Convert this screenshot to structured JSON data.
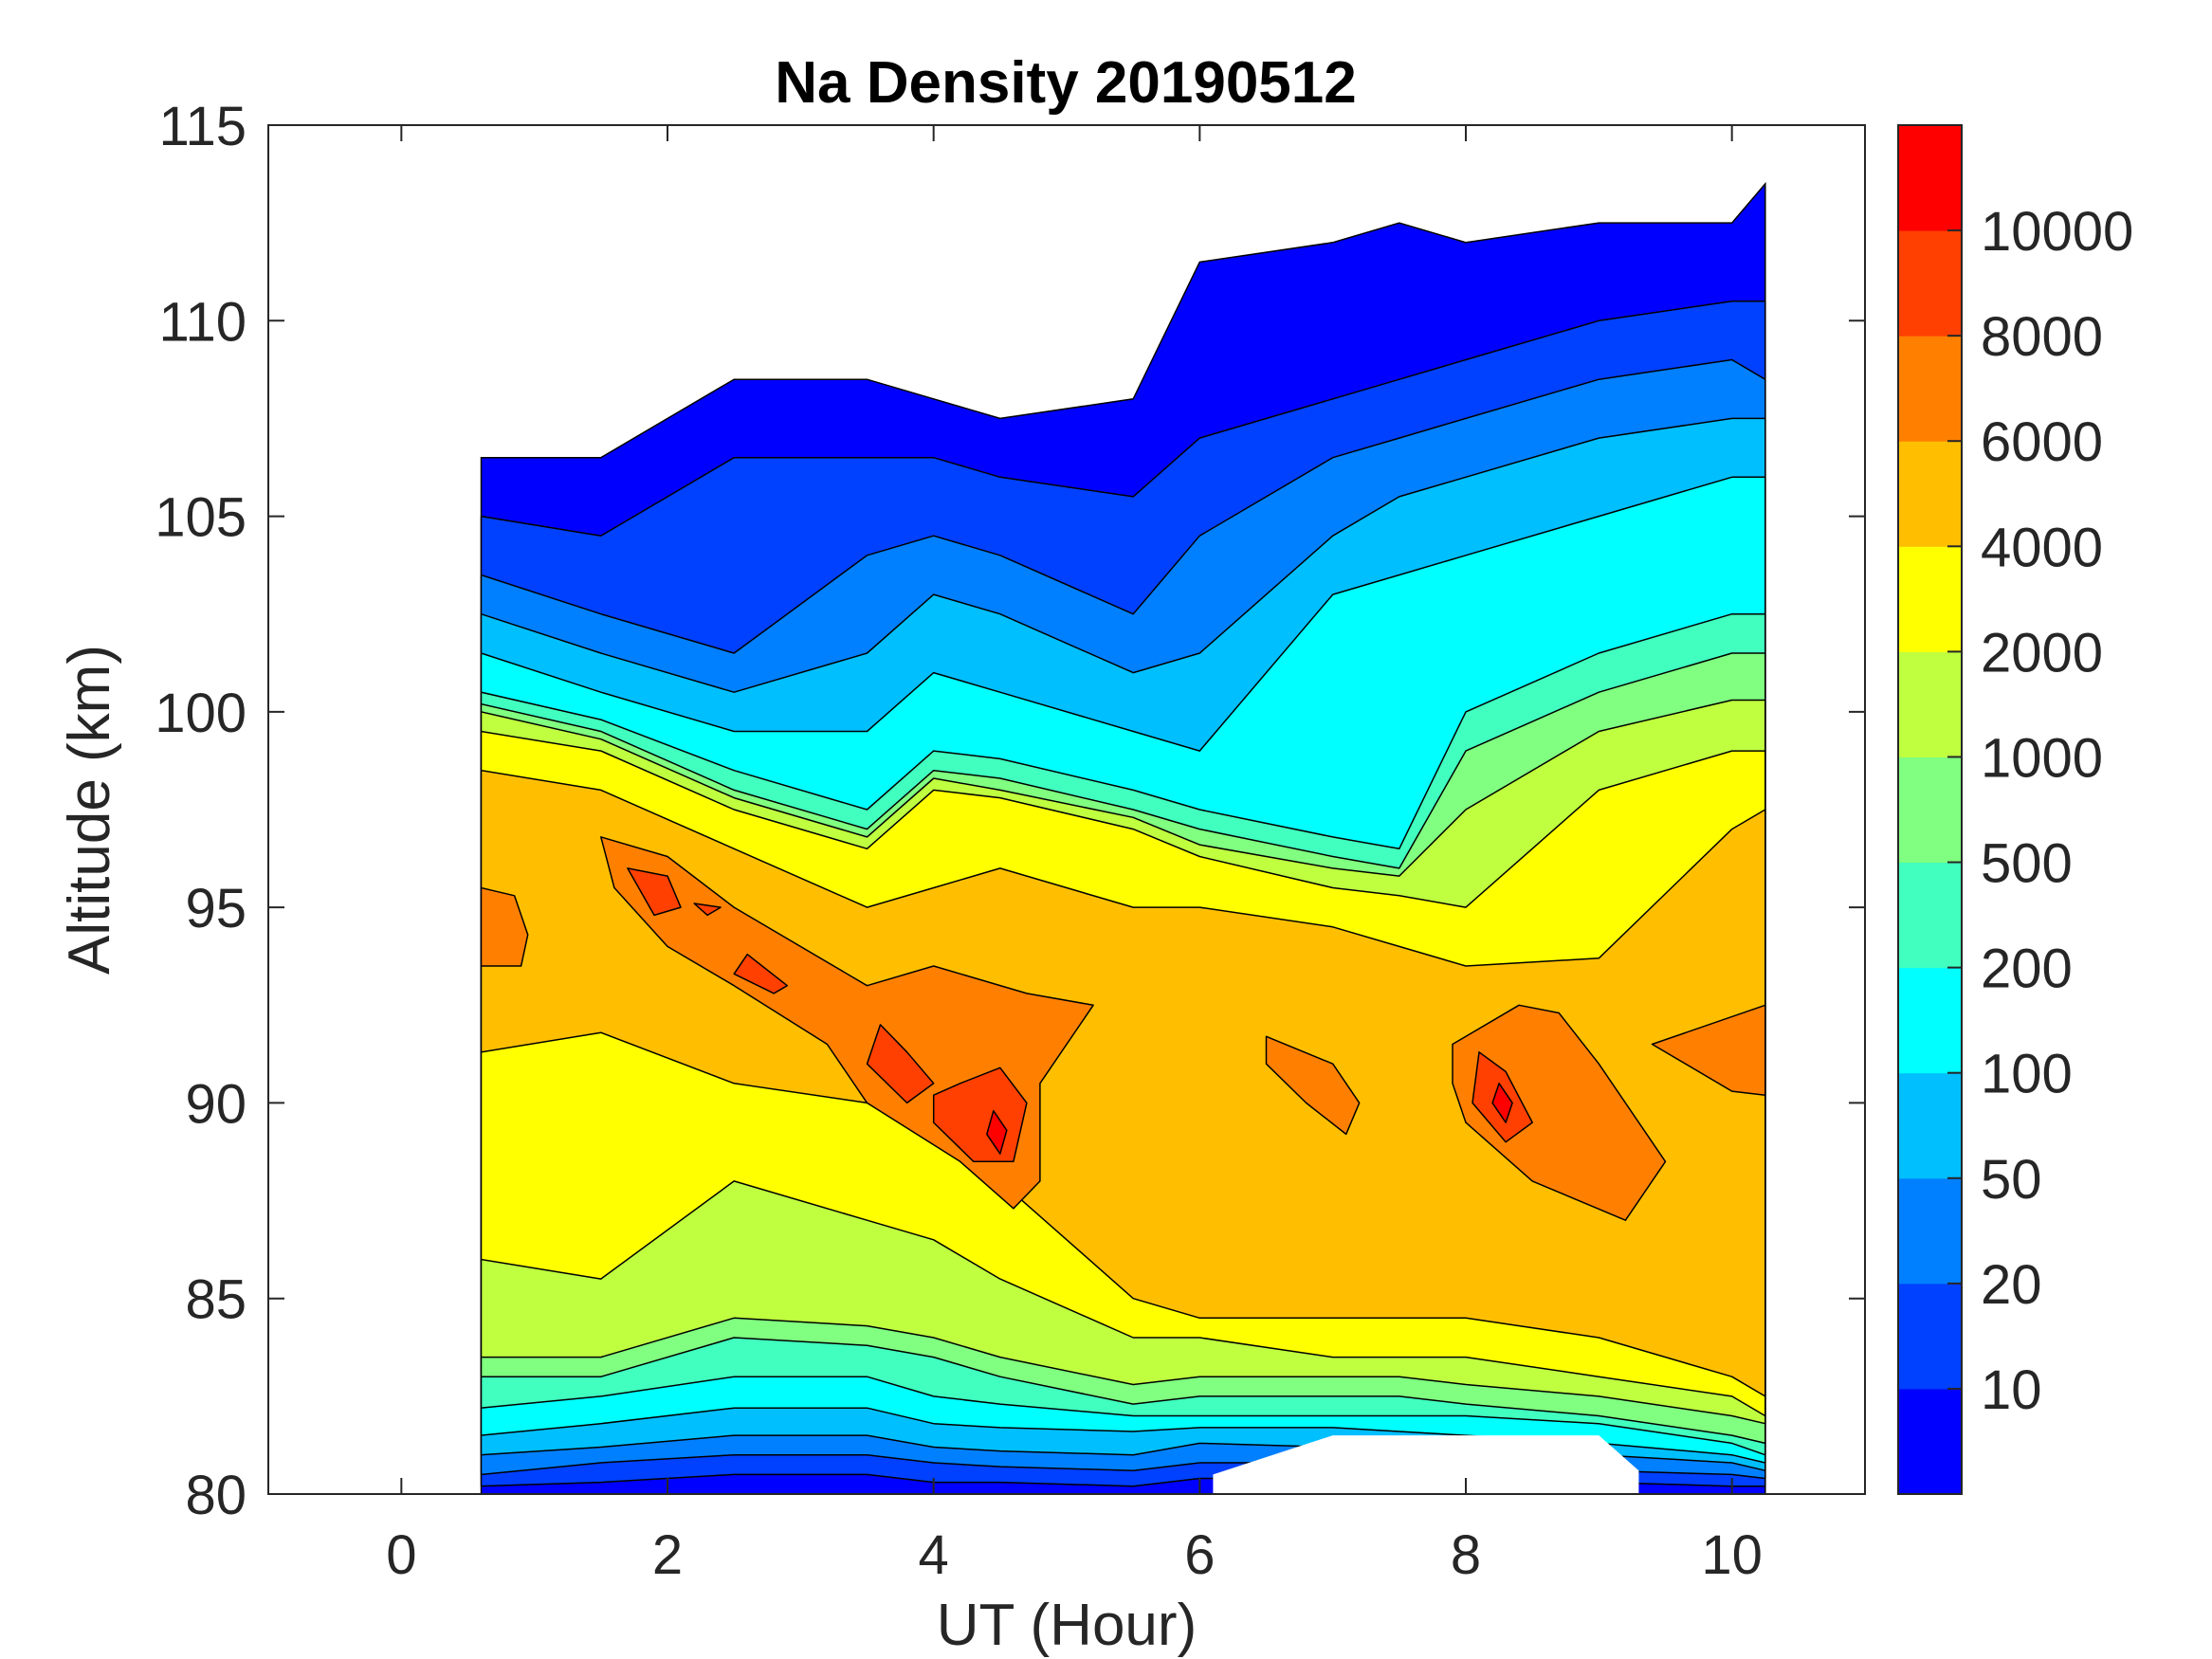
{
  "chart_data": {
    "type": "contour",
    "title": "Na Density 20190512",
    "xlabel": "UT (Hour)",
    "ylabel": "Altitude (km)",
    "xlim": [
      -1,
      11
    ],
    "ylim": [
      80,
      115
    ],
    "xticks": [
      0,
      2,
      4,
      6,
      8,
      10
    ],
    "yticks": [
      80,
      85,
      90,
      95,
      100,
      105,
      110,
      115
    ],
    "levels": [
      10,
      20,
      50,
      100,
      200,
      500,
      1000,
      2000,
      4000,
      6000,
      8000,
      10000
    ],
    "colorbar_ticks": [
      "10",
      "20",
      "50",
      "100",
      "200",
      "500",
      "1000",
      "2000",
      "4000",
      "6000",
      "8000",
      "10000"
    ],
    "band_colors": [
      "#0000ff",
      "#0040ff",
      "#0080ff",
      "#00bfff",
      "#00ffff",
      "#40ffbf",
      "#80ff80",
      "#bfff40",
      "#ffff00",
      "#ffbf00",
      "#ff8000",
      "#ff4000",
      "#ff0000"
    ],
    "ut": [
      0.6,
      1.5,
      2.5,
      3.5,
      4,
      4.5,
      5.5,
      6,
      7,
      7.5,
      8,
      9,
      10,
      10.25
    ],
    "data_top_km": [
      106.5,
      106.5,
      108.5,
      108.5,
      108,
      107.5,
      108,
      111.5,
      112,
      112.5,
      112,
      112.5,
      112.5,
      113.5
    ],
    "layer_top_km": {
      "10": [
        105,
        104.5,
        106.5,
        106.5,
        106.5,
        106,
        105.5,
        107,
        108,
        108.5,
        109,
        110,
        110.5,
        110.5
      ],
      "20": [
        103.5,
        102.5,
        101.5,
        104,
        104.5,
        104,
        102.5,
        104.5,
        106.5,
        107,
        107.5,
        108.5,
        109,
        108.5
      ],
      "50": [
        102.5,
        101.5,
        100.5,
        101.5,
        103,
        102.5,
        101,
        101.5,
        104.5,
        105.5,
        106,
        107,
        107.5,
        107.5
      ],
      "100": [
        101.5,
        100.5,
        99.5,
        99.5,
        101,
        100.5,
        99.5,
        99,
        103,
        103.5,
        104,
        105,
        106,
        106
      ],
      "200": [
        100.5,
        99.8,
        98.5,
        97.5,
        99,
        98.8,
        98,
        97.5,
        96.8,
        96.5,
        100,
        101.5,
        102.5,
        102.5
      ],
      "500": [
        100.2,
        99.5,
        98,
        97,
        98.5,
        98.3,
        97.5,
        97,
        96.3,
        96,
        99,
        100.5,
        101.5,
        101.5
      ],
      "1000": [
        100,
        99.3,
        97.8,
        96.8,
        98.3,
        98,
        97.3,
        96.6,
        96,
        95.8,
        97.5,
        99.5,
        100.3,
        100.3
      ],
      "2000": [
        99.5,
        99,
        97.5,
        96.5,
        98,
        97.8,
        97,
        96.3,
        95.5,
        95.3,
        95,
        98,
        99,
        99
      ],
      "4000": [
        98.5,
        98,
        96.5,
        95,
        95.5,
        96,
        95,
        95,
        94.5,
        94,
        93.5,
        93.7,
        97,
        97.5
      ]
    },
    "layer_bottom_km": {
      "10": [
        80.2,
        80.3,
        80.5,
        80.5,
        80.3,
        80.3,
        80.2,
        80.4,
        80.4,
        80.3,
        80.3,
        80.3,
        80.2,
        80.2
      ],
      "20": [
        80.5,
        80.8,
        81,
        81,
        80.8,
        80.7,
        80.6,
        80.8,
        80.8,
        80.7,
        80.6,
        80.6,
        80.5,
        80.4
      ],
      "50": [
        81,
        81.2,
        81.5,
        81.5,
        81.2,
        81.1,
        81,
        81.3,
        81.2,
        81.1,
        81,
        81,
        80.8,
        80.6
      ],
      "100": [
        81.5,
        81.8,
        82.2,
        82.2,
        81.8,
        81.7,
        81.6,
        81.7,
        81.7,
        81.6,
        81.5,
        81.3,
        81,
        80.8
      ],
      "200": [
        82.2,
        82.5,
        83,
        83,
        82.5,
        82.3,
        82,
        82,
        82,
        82,
        82,
        81.8,
        81.3,
        81
      ],
      "500": [
        83,
        83,
        84,
        83.8,
        83.5,
        83,
        82.3,
        82.5,
        82.5,
        82.5,
        82.3,
        82,
        81.5,
        81.3
      ],
      "1000": [
        83.5,
        83.5,
        84.5,
        84.3,
        84,
        83.5,
        82.8,
        83,
        83,
        83,
        82.8,
        82.5,
        82,
        81.8
      ],
      "2000": [
        86,
        85.5,
        88,
        87,
        86.5,
        85.5,
        84,
        84,
        83.5,
        83.5,
        83.5,
        83,
        82.5,
        82
      ],
      "4000": [
        91.3,
        91.8,
        90.5,
        90,
        89,
        88,
        85,
        84.5,
        84.5,
        84.5,
        84.5,
        84,
        83,
        82.5
      ]
    },
    "peaks": {
      "6000": [
        [
          [
            0.6,
            93.5
          ],
          [
            0.6,
            95.5
          ],
          [
            0.85,
            95.3
          ],
          [
            0.95,
            94.3
          ],
          [
            0.9,
            93.5
          ]
        ],
        [
          [
            1.5,
            96.8
          ],
          [
            2,
            96.3
          ],
          [
            2.5,
            95
          ],
          [
            3.5,
            93
          ],
          [
            4,
            93.5
          ],
          [
            4.7,
            92.8
          ],
          [
            5.2,
            92.5
          ],
          [
            4.8,
            90.5
          ],
          [
            4.8,
            88
          ],
          [
            4.6,
            87.3
          ],
          [
            4.2,
            88.5
          ],
          [
            3.5,
            90
          ],
          [
            3.2,
            91.5
          ],
          [
            2.5,
            93
          ],
          [
            2,
            94
          ],
          [
            1.6,
            95.5
          ]
        ],
        [
          [
            6.5,
            91.7
          ],
          [
            7,
            91
          ],
          [
            7.2,
            90
          ],
          [
            7.1,
            89.2
          ],
          [
            6.8,
            90
          ],
          [
            6.5,
            91
          ]
        ],
        [
          [
            7.9,
            91.5
          ],
          [
            8.4,
            92.5
          ],
          [
            8.7,
            92.3
          ],
          [
            9,
            91
          ],
          [
            9.5,
            88.5
          ],
          [
            9.2,
            87
          ],
          [
            8.5,
            88
          ],
          [
            8,
            89.5
          ],
          [
            7.9,
            90.5
          ]
        ],
        [
          [
            9.4,
            91.5
          ],
          [
            10.25,
            92.5
          ],
          [
            10.25,
            90.2
          ],
          [
            10,
            90.3
          ]
        ]
      ],
      "8000": [
        [
          [
            1.7,
            96
          ],
          [
            2,
            95.8
          ],
          [
            2.1,
            95
          ],
          [
            1.9,
            94.8
          ]
        ],
        [
          [
            2.2,
            95.1
          ],
          [
            2.4,
            95
          ],
          [
            2.3,
            94.8
          ]
        ],
        [
          [
            2.6,
            93.8
          ],
          [
            2.9,
            93
          ],
          [
            2.8,
            92.8
          ],
          [
            2.5,
            93.3
          ]
        ],
        [
          [
            3.6,
            92
          ],
          [
            3.8,
            91.3
          ],
          [
            4,
            90.5
          ],
          [
            3.8,
            90
          ],
          [
            3.5,
            91
          ]
        ],
        [
          [
            4.2,
            90.5
          ],
          [
            4.5,
            90.9
          ],
          [
            4.7,
            90
          ],
          [
            4.6,
            88.5
          ],
          [
            4.3,
            88.5
          ],
          [
            4,
            89.5
          ],
          [
            4,
            90.2
          ]
        ],
        [
          [
            8.1,
            91.3
          ],
          [
            8.3,
            90.8
          ],
          [
            8.5,
            89.5
          ],
          [
            8.3,
            89
          ],
          [
            8.05,
            90
          ]
        ]
      ],
      "10000": [
        [
          [
            4.45,
            89.8
          ],
          [
            4.55,
            89.3
          ],
          [
            4.5,
            88.7
          ],
          [
            4.4,
            89.2
          ]
        ],
        [
          [
            8.25,
            90.5
          ],
          [
            8.35,
            90
          ],
          [
            8.3,
            89.5
          ],
          [
            8.2,
            90
          ]
        ]
      ]
    },
    "no_data_regions": [
      [
        [
          6.1,
          80
        ],
        [
          6.1,
          80.5
        ],
        [
          7,
          81.5
        ],
        [
          8,
          81.5
        ],
        [
          9,
          81.5
        ],
        [
          9.3,
          80.6
        ],
        [
          9.3,
          80
        ]
      ]
    ]
  }
}
